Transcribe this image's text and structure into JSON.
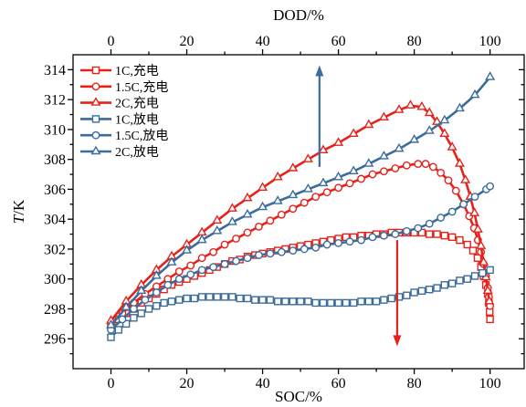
{
  "chart_data": {
    "type": "line",
    "xlabel": "SOC/%",
    "x2label": "DOD/%",
    "ylabel": "T/K",
    "xlim": [
      -10,
      109
    ],
    "ylim": [
      294,
      315
    ],
    "xticks": [
      0,
      20,
      40,
      60,
      80,
      100
    ],
    "x2ticks": [
      0,
      20,
      40,
      60,
      80,
      100
    ],
    "yticks": [
      296,
      298,
      300,
      302,
      304,
      306,
      308,
      310,
      312,
      314
    ],
    "grid": false,
    "legend_position": "top-left",
    "series": [
      {
        "name": "1C,充电",
        "color": "#e5231c",
        "marker": "square",
        "x": [
          0,
          2,
          4,
          6,
          8,
          10,
          12,
          14,
          16,
          18,
          20,
          22,
          24,
          26,
          28,
          30,
          32,
          34,
          36,
          38,
          40,
          42,
          44,
          46,
          48,
          50,
          52,
          54,
          56,
          58,
          60,
          62,
          64,
          66,
          68,
          70,
          72,
          74,
          76,
          78,
          80,
          82,
          84,
          86,
          88,
          90,
          92,
          94,
          95.5,
          96.7,
          97.6,
          98.3,
          98.9,
          99.4,
          99.7,
          99.9,
          100
        ],
        "y": [
          296.9,
          297.3,
          297.7,
          298.0,
          298.4,
          298.7,
          299.0,
          299.3,
          299.6,
          299.8,
          300.0,
          300.2,
          300.4,
          300.6,
          300.8,
          301.0,
          301.2,
          301.3,
          301.5,
          301.6,
          301.7,
          301.8,
          301.9,
          302.0,
          302.1,
          302.2,
          302.3,
          302.4,
          302.5,
          302.6,
          302.7,
          302.8,
          302.8,
          302.9,
          302.9,
          303.0,
          303.0,
          303.1,
          303.1,
          303.1,
          303.1,
          303.1,
          303.0,
          303.0,
          302.9,
          302.8,
          302.6,
          302.3,
          301.9,
          301.4,
          300.8,
          300.2,
          299.6,
          299.0,
          298.4,
          297.8,
          297.3
        ]
      },
      {
        "name": "1.5C,充电",
        "color": "#e5231c",
        "marker": "circle",
        "x": [
          0,
          3,
          6,
          9,
          12,
          15,
          18,
          21,
          24,
          27,
          30,
          33,
          36,
          39,
          42,
          45,
          48,
          51,
          54,
          57,
          60,
          63,
          66,
          69,
          72,
          75,
          78,
          81,
          83,
          85,
          87,
          89,
          91,
          93,
          94.5,
          95.8,
          96.8,
          97.6,
          98.3,
          98.9,
          99.4,
          99.7,
          100
        ],
        "y": [
          297.0,
          297.7,
          298.4,
          299.0,
          299.5,
          300.0,
          300.5,
          300.9,
          301.4,
          301.8,
          302.3,
          302.7,
          303.1,
          303.5,
          303.9,
          304.3,
          304.7,
          305.1,
          305.5,
          305.8,
          306.1,
          306.4,
          306.7,
          307.0,
          307.2,
          307.4,
          307.6,
          307.7,
          307.7,
          307.5,
          307.1,
          306.6,
          305.9,
          305.0,
          304.2,
          303.4,
          302.6,
          301.8,
          301.0,
          300.2,
          299.4,
          298.8,
          298.2
        ]
      },
      {
        "name": "2C,充电",
        "color": "#e5231c",
        "marker": "triangle",
        "x": [
          0,
          4,
          8,
          12,
          16,
          20,
          24,
          28,
          32,
          36,
          40,
          44,
          48,
          52,
          56,
          60,
          64,
          68,
          72,
          76,
          79,
          82,
          84,
          86,
          88,
          90,
          92,
          93.5,
          94.8,
          95.9,
          96.8,
          97.6,
          98.3,
          98.9,
          99.4,
          99.8
        ],
        "y": [
          297.2,
          298.5,
          299.6,
          300.6,
          301.5,
          302.3,
          303.1,
          303.9,
          304.7,
          305.4,
          306.1,
          306.8,
          307.4,
          308.0,
          308.6,
          309.1,
          309.7,
          310.3,
          310.8,
          311.3,
          311.6,
          311.5,
          311.1,
          310.5,
          309.7,
          308.8,
          307.7,
          306.6,
          305.5,
          304.4,
          303.3,
          302.2,
          301.1,
          300.1,
          299.2,
          298.5
        ]
      },
      {
        "name": "1C,放电",
        "color": "#3b6c9c",
        "marker": "square",
        "x": [
          0,
          2,
          4,
          6,
          8,
          10,
          12,
          14,
          16,
          18,
          20,
          22,
          24,
          26,
          28,
          30,
          32,
          34,
          36,
          38,
          40,
          42,
          44,
          46,
          48,
          50,
          52,
          54,
          56,
          58,
          60,
          62,
          64,
          66,
          68,
          70,
          72,
          74,
          76,
          78,
          80,
          82,
          84,
          86,
          88,
          90,
          92,
          94,
          96,
          98,
          100
        ],
        "y": [
          296.1,
          296.6,
          297.0,
          297.4,
          297.7,
          298.0,
          298.2,
          298.4,
          298.5,
          298.6,
          298.7,
          298.7,
          298.8,
          298.8,
          298.8,
          298.8,
          298.8,
          298.7,
          298.7,
          298.6,
          298.6,
          298.6,
          298.5,
          298.5,
          298.5,
          298.5,
          298.5,
          298.4,
          298.4,
          298.4,
          298.4,
          298.4,
          298.4,
          298.5,
          298.5,
          298.5,
          298.6,
          298.7,
          298.8,
          298.9,
          299.1,
          299.2,
          299.3,
          299.4,
          299.6,
          299.7,
          299.9,
          300.0,
          300.2,
          300.4,
          300.6
        ]
      },
      {
        "name": "1.5C,放电",
        "color": "#3b6c9c",
        "marker": "circle",
        "x": [
          0,
          3,
          6,
          9,
          12,
          15,
          18,
          21,
          24,
          27,
          30,
          33,
          36,
          39,
          42,
          45,
          48,
          51,
          54,
          57,
          60,
          63,
          66,
          69,
          72,
          75,
          78,
          81,
          84,
          87,
          90,
          93,
          96,
          99,
          100
        ],
        "y": [
          296.6,
          297.3,
          298.0,
          298.6,
          299.1,
          299.6,
          300.0,
          300.3,
          300.6,
          300.8,
          301.0,
          301.2,
          301.4,
          301.6,
          301.7,
          301.8,
          301.9,
          302.0,
          302.1,
          302.3,
          302.4,
          302.5,
          302.6,
          302.8,
          302.9,
          303.0,
          303.2,
          303.4,
          303.7,
          304.1,
          304.5,
          305.0,
          305.5,
          306.0,
          306.2
        ]
      },
      {
        "name": "2C,放电",
        "color": "#3b6c9c",
        "marker": "triangle",
        "x": [
          0,
          4,
          8,
          12,
          16,
          20,
          24,
          28,
          32,
          36,
          40,
          44,
          48,
          52,
          56,
          60,
          64,
          68,
          72,
          76,
          80,
          84,
          88,
          92,
          96,
          100
        ],
        "y": [
          296.9,
          298.1,
          299.2,
          300.2,
          301.1,
          301.9,
          302.6,
          303.2,
          303.8,
          304.3,
          304.8,
          305.2,
          305.6,
          306.0,
          306.4,
          306.8,
          307.2,
          307.7,
          308.2,
          308.7,
          309.3,
          309.9,
          310.6,
          311.4,
          312.3,
          313.5
        ]
      }
    ],
    "arrows": [
      {
        "x": 55,
        "y_from": 307.5,
        "y_to": 314.3,
        "color": "#3b6c9c"
      },
      {
        "x": 75.5,
        "y_from": 302.6,
        "y_to": 295.5,
        "color": "#e5231c"
      }
    ]
  }
}
